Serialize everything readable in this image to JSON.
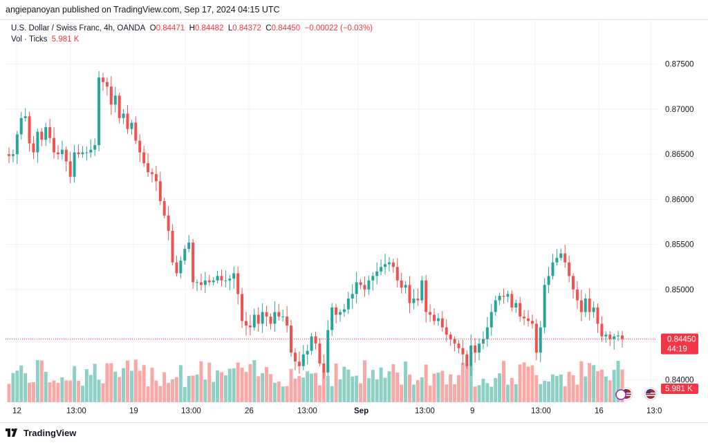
{
  "header": {
    "publisher_line": "angiepanoyan published on TradingView.com, Sep 17, 2024 04:15 UTC"
  },
  "legend": {
    "symbol": "U.S. Dollar / Swiss Franc, 4h, OANDA",
    "o_label": "O",
    "o_value": "0.84471",
    "h_label": "H",
    "h_value": "0.84482",
    "l_label": "L",
    "l_value": "0.84372",
    "c_label": "C",
    "c_value": "0.84450",
    "change": "−0.00022 (−0.03%)",
    "vol_label": "Vol · Ticks",
    "vol_value": "5.981 K"
  },
  "price_axis": {
    "ticks": [
      "0.87500",
      "0.87000",
      "0.86500",
      "0.86000",
      "0.85500",
      "0.85000",
      "0.84000"
    ],
    "tick_values": [
      0.875,
      0.87,
      0.865,
      0.86,
      0.855,
      0.85,
      0.84
    ],
    "last_price_label": "0.84450",
    "countdown_label": "44:19",
    "volume_label": "5.981 K"
  },
  "time_axis": {
    "labels": [
      "12",
      "13:00",
      "19",
      "13:00",
      "26",
      "13:00",
      "Sep",
      "13:00",
      "9",
      "13:00",
      "16",
      "13:0"
    ]
  },
  "footer": {
    "brand": "TradingView"
  },
  "colors": {
    "up": "#26a69a",
    "down": "#ef5350",
    "vol_up": "#8fd0c6",
    "vol_down": "#f7a9a7",
    "last_price": "#f23645",
    "grid": "#f0f3fa"
  },
  "chart_data": {
    "type": "candlestick",
    "title": "U.S. Dollar / Swiss Franc, 4h, OANDA",
    "x_axis_labels": [
      "12",
      "13:00",
      "19",
      "13:00",
      "26",
      "13:00",
      "Sep",
      "13:00",
      "9",
      "13:00",
      "16",
      "13:0"
    ],
    "y_range": [
      0.8375,
      0.8775
    ],
    "last_close": 0.8445,
    "volume_last": "5.981 K",
    "close": [
      0.8648,
      0.865,
      0.8672,
      0.869,
      0.8692,
      0.8662,
      0.8652,
      0.8675,
      0.8666,
      0.868,
      0.8668,
      0.8652,
      0.865,
      0.8655,
      0.8642,
      0.8625,
      0.8652,
      0.865,
      0.8652,
      0.8652,
      0.8655,
      0.866,
      0.8735,
      0.873,
      0.8725,
      0.8705,
      0.8715,
      0.869,
      0.8695,
      0.8678,
      0.8685,
      0.8665,
      0.8652,
      0.864,
      0.863,
      0.8628,
      0.862,
      0.8598,
      0.8582,
      0.8565,
      0.853,
      0.8518,
      0.8532,
      0.8545,
      0.8552,
      0.8508,
      0.8508,
      0.8505,
      0.851,
      0.8508,
      0.851,
      0.8515,
      0.851,
      0.851,
      0.8512,
      0.8518,
      0.8495,
      0.8465,
      0.846,
      0.8458,
      0.8472,
      0.8462,
      0.8475,
      0.847,
      0.8462,
      0.8475,
      0.847,
      0.847,
      0.846,
      0.843,
      0.842,
      0.8415,
      0.8428,
      0.8432,
      0.8448,
      0.844,
      0.8418,
      0.8408,
      0.8455,
      0.848,
      0.8472,
      0.8475,
      0.8478,
      0.849,
      0.8495,
      0.8508,
      0.8505,
      0.85,
      0.851,
      0.8515,
      0.852,
      0.8525,
      0.8528,
      0.853,
      0.8525,
      0.851,
      0.8502,
      0.8505,
      0.8485,
      0.849,
      0.8488,
      0.851,
      0.8475,
      0.8472,
      0.8465,
      0.8468,
      0.8458,
      0.845,
      0.8445,
      0.844,
      0.8435,
      0.8428,
      0.8415,
      0.8438,
      0.843,
      0.844,
      0.8445,
      0.8458,
      0.8475,
      0.8488,
      0.8493,
      0.8492,
      0.8495,
      0.848,
      0.8485,
      0.847,
      0.8468,
      0.8465,
      0.8462,
      0.843,
      0.8458,
      0.8505,
      0.8515,
      0.853,
      0.8535,
      0.854,
      0.853,
      0.8515,
      0.85,
      0.8488,
      0.8475,
      0.849,
      0.8475,
      0.848,
      0.8462,
      0.8448,
      0.845,
      0.8445,
      0.8448,
      0.8449,
      0.8445
    ]
  }
}
